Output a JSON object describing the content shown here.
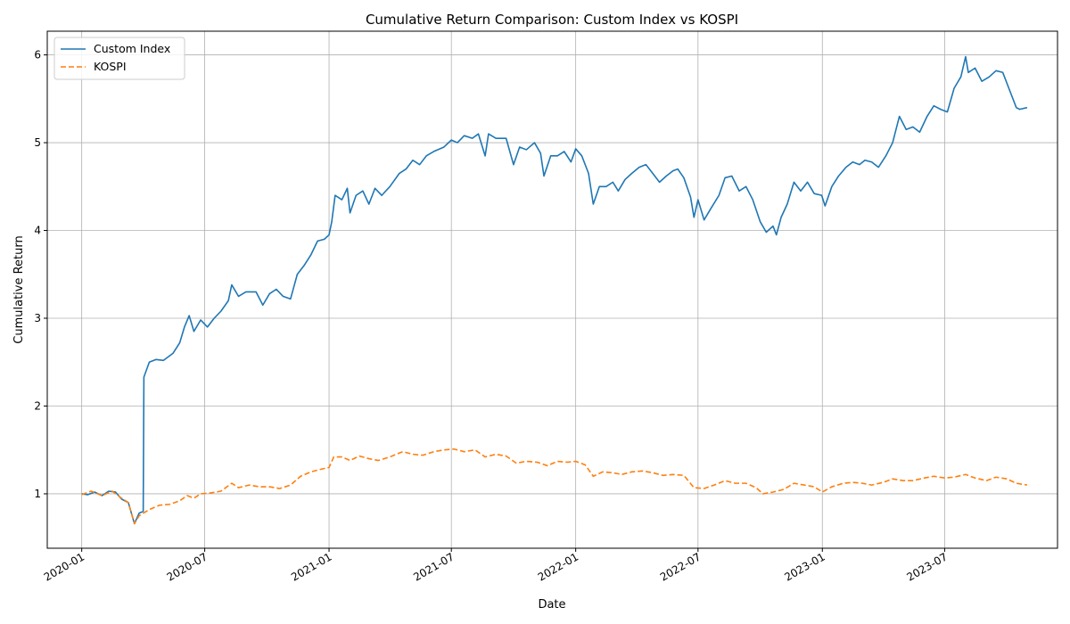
{
  "chart_data": {
    "type": "line",
    "title": "Cumulative Return Comparison: Custom Index vs KOSPI",
    "xlabel": "Date",
    "ylabel": "Cumulative Return",
    "xlim": [
      "2019-11-11",
      "2023-12-15"
    ],
    "ylim": [
      0.38,
      6.27
    ],
    "x_ticks": [
      "2020-01",
      "2020-07",
      "2021-01",
      "2021-07",
      "2022-01",
      "2022-07",
      "2023-01",
      "2023-07"
    ],
    "y_ticks": [
      1,
      2,
      3,
      4,
      5,
      6
    ],
    "grid": true,
    "legend_position": "upper-left",
    "series": [
      {
        "name": "Custom Index",
        "color": "#1f77b4",
        "style": "solid",
        "points": [
          [
            "2020-01-01",
            1.0
          ],
          [
            "2020-01-10",
            0.99
          ],
          [
            "2020-01-20",
            1.02
          ],
          [
            "2020-01-31",
            0.98
          ],
          [
            "2020-02-10",
            1.03
          ],
          [
            "2020-02-20",
            1.02
          ],
          [
            "2020-02-29",
            0.94
          ],
          [
            "2020-03-10",
            0.9
          ],
          [
            "2020-03-19",
            0.66
          ],
          [
            "2020-03-26",
            0.78
          ],
          [
            "2020-04-01",
            0.8
          ],
          [
            "2020-04-02",
            2.33
          ],
          [
            "2020-04-10",
            2.5
          ],
          [
            "2020-04-20",
            2.53
          ],
          [
            "2020-05-01",
            2.52
          ],
          [
            "2020-05-15",
            2.6
          ],
          [
            "2020-05-25",
            2.72
          ],
          [
            "2020-06-01",
            2.9
          ],
          [
            "2020-06-08",
            3.03
          ],
          [
            "2020-06-15",
            2.85
          ],
          [
            "2020-06-25",
            2.98
          ],
          [
            "2020-07-05",
            2.9
          ],
          [
            "2020-07-15",
            3.0
          ],
          [
            "2020-07-25",
            3.08
          ],
          [
            "2020-08-05",
            3.2
          ],
          [
            "2020-08-10",
            3.38
          ],
          [
            "2020-08-20",
            3.25
          ],
          [
            "2020-08-31",
            3.3
          ],
          [
            "2020-09-15",
            3.3
          ],
          [
            "2020-09-25",
            3.15
          ],
          [
            "2020-10-05",
            3.28
          ],
          [
            "2020-10-15",
            3.33
          ],
          [
            "2020-10-25",
            3.25
          ],
          [
            "2020-11-05",
            3.22
          ],
          [
            "2020-11-15",
            3.5
          ],
          [
            "2020-11-25",
            3.6
          ],
          [
            "2020-12-05",
            3.72
          ],
          [
            "2020-12-15",
            3.88
          ],
          [
            "2020-12-25",
            3.9
          ],
          [
            "2021-01-01",
            3.95
          ],
          [
            "2021-01-05",
            4.1
          ],
          [
            "2021-01-10",
            4.4
          ],
          [
            "2021-01-20",
            4.35
          ],
          [
            "2021-01-28",
            4.48
          ],
          [
            "2021-02-01",
            4.2
          ],
          [
            "2021-02-10",
            4.4
          ],
          [
            "2021-02-20",
            4.45
          ],
          [
            "2021-03-01",
            4.3
          ],
          [
            "2021-03-10",
            4.48
          ],
          [
            "2021-03-20",
            4.4
          ],
          [
            "2021-04-01",
            4.5
          ],
          [
            "2021-04-15",
            4.65
          ],
          [
            "2021-04-25",
            4.7
          ],
          [
            "2021-05-05",
            4.8
          ],
          [
            "2021-05-15",
            4.75
          ],
          [
            "2021-05-25",
            4.85
          ],
          [
            "2021-06-05",
            4.9
          ],
          [
            "2021-06-20",
            4.95
          ],
          [
            "2021-07-01",
            5.03
          ],
          [
            "2021-07-10",
            5.0
          ],
          [
            "2021-07-20",
            5.08
          ],
          [
            "2021-08-01",
            5.05
          ],
          [
            "2021-08-10",
            5.1
          ],
          [
            "2021-08-20",
            4.85
          ],
          [
            "2021-08-25",
            5.1
          ],
          [
            "2021-09-05",
            5.05
          ],
          [
            "2021-09-20",
            5.05
          ],
          [
            "2021-10-01",
            4.75
          ],
          [
            "2021-10-10",
            4.95
          ],
          [
            "2021-10-20",
            4.92
          ],
          [
            "2021-11-01",
            5.0
          ],
          [
            "2021-11-10",
            4.88
          ],
          [
            "2021-11-15",
            4.62
          ],
          [
            "2021-11-25",
            4.85
          ],
          [
            "2021-12-05",
            4.85
          ],
          [
            "2021-12-15",
            4.9
          ],
          [
            "2021-12-25",
            4.78
          ],
          [
            "2022-01-01",
            4.93
          ],
          [
            "2022-01-10",
            4.85
          ],
          [
            "2022-01-20",
            4.65
          ],
          [
            "2022-01-27",
            4.3
          ],
          [
            "2022-02-05",
            4.5
          ],
          [
            "2022-02-15",
            4.5
          ],
          [
            "2022-02-25",
            4.55
          ],
          [
            "2022-03-05",
            4.45
          ],
          [
            "2022-03-15",
            4.58
          ],
          [
            "2022-03-25",
            4.65
          ],
          [
            "2022-04-05",
            4.72
          ],
          [
            "2022-04-15",
            4.75
          ],
          [
            "2022-04-25",
            4.65
          ],
          [
            "2022-05-05",
            4.55
          ],
          [
            "2022-05-15",
            4.62
          ],
          [
            "2022-05-25",
            4.68
          ],
          [
            "2022-06-01",
            4.7
          ],
          [
            "2022-06-10",
            4.6
          ],
          [
            "2022-06-20",
            4.38
          ],
          [
            "2022-06-25",
            4.15
          ],
          [
            "2022-07-01",
            4.35
          ],
          [
            "2022-07-10",
            4.12
          ],
          [
            "2022-07-20",
            4.25
          ],
          [
            "2022-08-01",
            4.4
          ],
          [
            "2022-08-10",
            4.6
          ],
          [
            "2022-08-20",
            4.62
          ],
          [
            "2022-08-31",
            4.45
          ],
          [
            "2022-09-10",
            4.5
          ],
          [
            "2022-09-20",
            4.35
          ],
          [
            "2022-10-01",
            4.1
          ],
          [
            "2022-10-10",
            3.98
          ],
          [
            "2022-10-20",
            4.05
          ],
          [
            "2022-10-25",
            3.95
          ],
          [
            "2022-11-01",
            4.15
          ],
          [
            "2022-11-10",
            4.3
          ],
          [
            "2022-11-20",
            4.55
          ],
          [
            "2022-11-30",
            4.45
          ],
          [
            "2022-12-10",
            4.55
          ],
          [
            "2022-12-20",
            4.42
          ],
          [
            "2022-12-31",
            4.4
          ],
          [
            "2023-01-05",
            4.28
          ],
          [
            "2023-01-15",
            4.5
          ],
          [
            "2023-01-25",
            4.62
          ],
          [
            "2023-02-05",
            4.72
          ],
          [
            "2023-02-15",
            4.78
          ],
          [
            "2023-02-25",
            4.75
          ],
          [
            "2023-03-05",
            4.8
          ],
          [
            "2023-03-15",
            4.78
          ],
          [
            "2023-03-25",
            4.72
          ],
          [
            "2023-04-05",
            4.85
          ],
          [
            "2023-04-15",
            5.0
          ],
          [
            "2023-04-25",
            5.3
          ],
          [
            "2023-05-05",
            5.15
          ],
          [
            "2023-05-15",
            5.18
          ],
          [
            "2023-05-25",
            5.12
          ],
          [
            "2023-06-05",
            5.3
          ],
          [
            "2023-06-15",
            5.42
          ],
          [
            "2023-06-25",
            5.38
          ],
          [
            "2023-07-05",
            5.35
          ],
          [
            "2023-07-15",
            5.62
          ],
          [
            "2023-07-25",
            5.75
          ],
          [
            "2023-08-01",
            5.98
          ],
          [
            "2023-08-05",
            5.8
          ],
          [
            "2023-08-15",
            5.85
          ],
          [
            "2023-08-25",
            5.7
          ],
          [
            "2023-09-05",
            5.75
          ],
          [
            "2023-09-15",
            5.82
          ],
          [
            "2023-09-25",
            5.8
          ],
          [
            "2023-10-05",
            5.6
          ],
          [
            "2023-10-15",
            5.4
          ],
          [
            "2023-10-20",
            5.38
          ],
          [
            "2023-10-31",
            5.4
          ]
        ]
      },
      {
        "name": "KOSPI",
        "color": "#ff7f0e",
        "style": "dashed",
        "points": [
          [
            "2020-01-01",
            0.99
          ],
          [
            "2020-01-15",
            1.03
          ],
          [
            "2020-01-31",
            0.98
          ],
          [
            "2020-02-15",
            1.03
          ],
          [
            "2020-02-29",
            0.95
          ],
          [
            "2020-03-10",
            0.9
          ],
          [
            "2020-03-19",
            0.66
          ],
          [
            "2020-03-26",
            0.75
          ],
          [
            "2020-04-10",
            0.82
          ],
          [
            "2020-04-25",
            0.87
          ],
          [
            "2020-05-10",
            0.88
          ],
          [
            "2020-05-25",
            0.92
          ],
          [
            "2020-06-05",
            0.98
          ],
          [
            "2020-06-15",
            0.95
          ],
          [
            "2020-06-25",
            1.0
          ],
          [
            "2020-07-10",
            1.01
          ],
          [
            "2020-07-25",
            1.03
          ],
          [
            "2020-08-10",
            1.12
          ],
          [
            "2020-08-20",
            1.07
          ],
          [
            "2020-09-05",
            1.1
          ],
          [
            "2020-09-20",
            1.08
          ],
          [
            "2020-10-05",
            1.08
          ],
          [
            "2020-10-20",
            1.06
          ],
          [
            "2020-11-05",
            1.1
          ],
          [
            "2020-11-20",
            1.2
          ],
          [
            "2020-12-05",
            1.25
          ],
          [
            "2020-12-20",
            1.28
          ],
          [
            "2021-01-01",
            1.3
          ],
          [
            "2021-01-08",
            1.42
          ],
          [
            "2021-01-20",
            1.42
          ],
          [
            "2021-02-01",
            1.38
          ],
          [
            "2021-02-15",
            1.43
          ],
          [
            "2021-03-01",
            1.4
          ],
          [
            "2021-03-15",
            1.38
          ],
          [
            "2021-04-01",
            1.42
          ],
          [
            "2021-04-20",
            1.48
          ],
          [
            "2021-05-05",
            1.45
          ],
          [
            "2021-05-20",
            1.44
          ],
          [
            "2021-06-05",
            1.48
          ],
          [
            "2021-06-20",
            1.5
          ],
          [
            "2021-07-05",
            1.51
          ],
          [
            "2021-07-20",
            1.48
          ],
          [
            "2021-08-05",
            1.5
          ],
          [
            "2021-08-20",
            1.42
          ],
          [
            "2021-09-05",
            1.45
          ],
          [
            "2021-09-20",
            1.43
          ],
          [
            "2021-10-05",
            1.35
          ],
          [
            "2021-10-20",
            1.37
          ],
          [
            "2021-11-05",
            1.36
          ],
          [
            "2021-11-20",
            1.32
          ],
          [
            "2021-12-05",
            1.37
          ],
          [
            "2021-12-20",
            1.36
          ],
          [
            "2022-01-01",
            1.37
          ],
          [
            "2022-01-15",
            1.33
          ],
          [
            "2022-01-27",
            1.2
          ],
          [
            "2022-02-10",
            1.25
          ],
          [
            "2022-02-25",
            1.24
          ],
          [
            "2022-03-10",
            1.22
          ],
          [
            "2022-03-25",
            1.25
          ],
          [
            "2022-04-10",
            1.26
          ],
          [
            "2022-04-25",
            1.24
          ],
          [
            "2022-05-10",
            1.21
          ],
          [
            "2022-05-25",
            1.22
          ],
          [
            "2022-06-10",
            1.21
          ],
          [
            "2022-06-25",
            1.07
          ],
          [
            "2022-07-10",
            1.06
          ],
          [
            "2022-07-25",
            1.1
          ],
          [
            "2022-08-10",
            1.15
          ],
          [
            "2022-08-25",
            1.12
          ],
          [
            "2022-09-10",
            1.12
          ],
          [
            "2022-09-25",
            1.07
          ],
          [
            "2022-10-05",
            1.0
          ],
          [
            "2022-10-20",
            1.02
          ],
          [
            "2022-11-05",
            1.05
          ],
          [
            "2022-11-20",
            1.12
          ],
          [
            "2022-12-05",
            1.1
          ],
          [
            "2022-12-20",
            1.08
          ],
          [
            "2023-01-01",
            1.02
          ],
          [
            "2023-01-15",
            1.08
          ],
          [
            "2023-02-01",
            1.12
          ],
          [
            "2023-02-15",
            1.13
          ],
          [
            "2023-03-01",
            1.12
          ],
          [
            "2023-03-15",
            1.1
          ],
          [
            "2023-04-01",
            1.13
          ],
          [
            "2023-04-15",
            1.17
          ],
          [
            "2023-05-01",
            1.15
          ],
          [
            "2023-05-15",
            1.15
          ],
          [
            "2023-06-01",
            1.18
          ],
          [
            "2023-06-15",
            1.2
          ],
          [
            "2023-07-01",
            1.18
          ],
          [
            "2023-07-15",
            1.19
          ],
          [
            "2023-08-01",
            1.22
          ],
          [
            "2023-08-15",
            1.18
          ],
          [
            "2023-09-01",
            1.15
          ],
          [
            "2023-09-15",
            1.19
          ],
          [
            "2023-10-01",
            1.17
          ],
          [
            "2023-10-15",
            1.12
          ],
          [
            "2023-10-31",
            1.1
          ]
        ]
      }
    ]
  }
}
